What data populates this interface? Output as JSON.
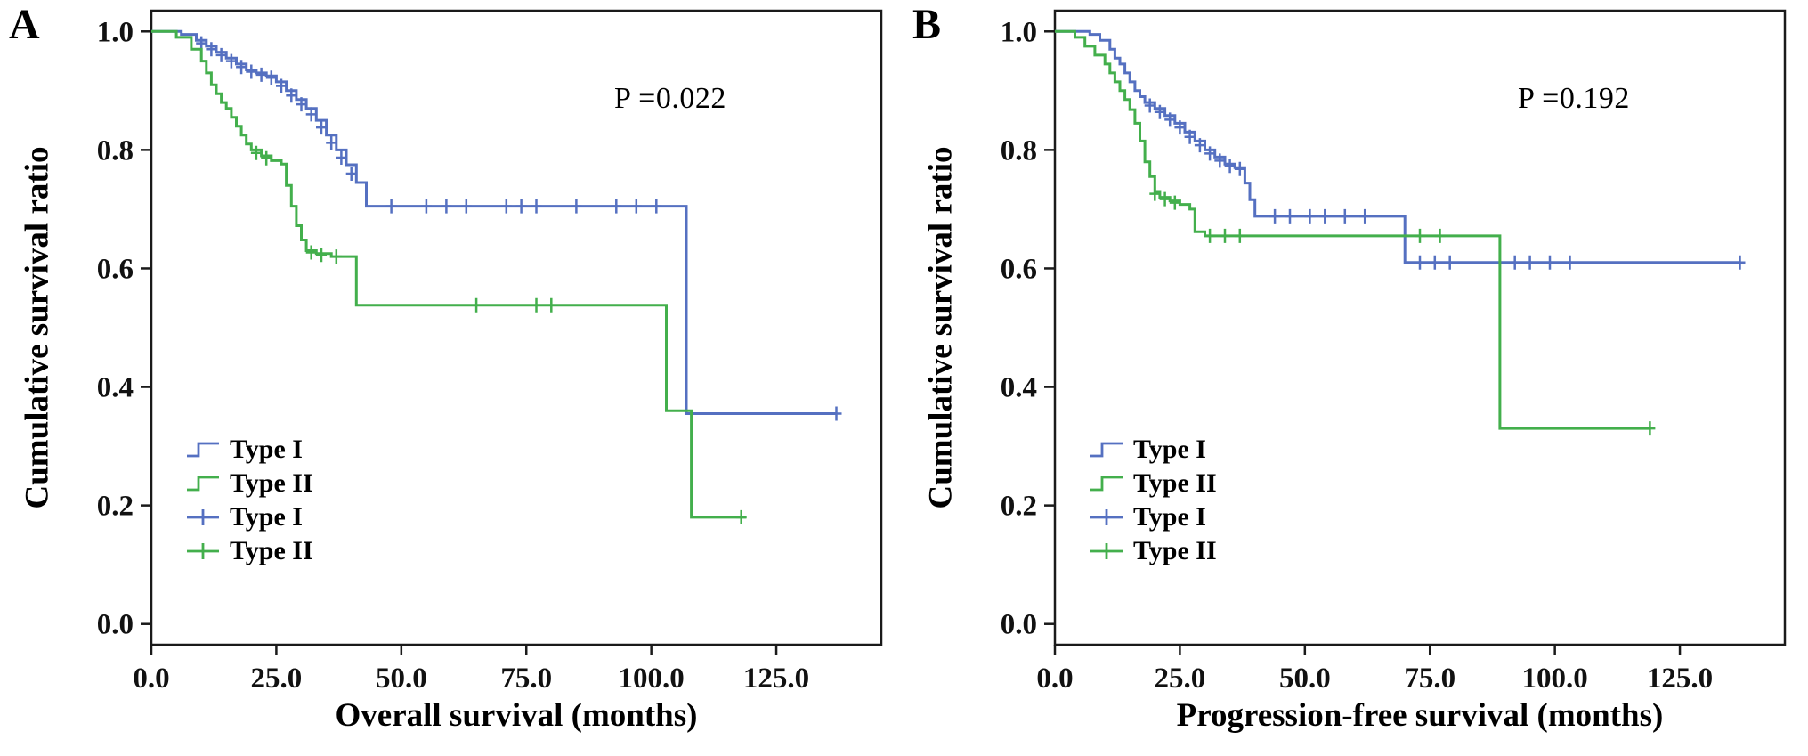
{
  "figure": {
    "background": "#ffffff",
    "colors": {
      "type1": "#5570c1",
      "type2": "#43af4c",
      "axis": "#1a1a1a",
      "text": "#111111"
    }
  },
  "chart_data": [
    {
      "type": "line",
      "subtype": "kaplan-meier-step",
      "panel_label": "A",
      "xlabel": "Overall survival (months)",
      "ylabel": "Cumulative survival ratio",
      "annotation": "P =0.022",
      "xlim": [
        0,
        146
      ],
      "ylim": [
        -0.035,
        1.035
      ],
      "xticks": [
        0,
        25,
        50,
        75,
        100,
        125
      ],
      "xtick_labels": [
        "0.0",
        "25.0",
        "50.0",
        "75.0",
        "100.0",
        "125.0"
      ],
      "yticks": [
        0,
        0.2,
        0.4,
        0.6,
        0.8,
        1.0
      ],
      "ytick_labels": [
        "0.0",
        "0.2",
        "0.4",
        "0.6",
        "0.8",
        "1.0"
      ],
      "grid": false,
      "legend_position": "lower-left-inside",
      "legend": [
        {
          "label": "Type I",
          "color_key": "type1",
          "style": "line"
        },
        {
          "label": "Type II",
          "color_key": "type2",
          "style": "line"
        },
        {
          "label": "Type I",
          "color_key": "type1",
          "style": "censor"
        },
        {
          "label": "Type II",
          "color_key": "type2",
          "style": "censor"
        }
      ],
      "series": [
        {
          "name": "Type I",
          "color_key": "type1",
          "steps": [
            [
              0,
              1.0
            ],
            [
              6,
              0.995
            ],
            [
              9,
              0.985
            ],
            [
              11,
              0.975
            ],
            [
              13,
              0.965
            ],
            [
              15,
              0.955
            ],
            [
              17,
              0.945
            ],
            [
              19,
              0.935
            ],
            [
              21,
              0.93
            ],
            [
              23,
              0.925
            ],
            [
              25,
              0.915
            ],
            [
              27,
              0.9
            ],
            [
              29,
              0.885
            ],
            [
              31,
              0.87
            ],
            [
              33,
              0.85
            ],
            [
              35,
              0.825
            ],
            [
              37,
              0.8
            ],
            [
              39,
              0.775
            ],
            [
              41,
              0.745
            ],
            [
              43,
              0.705
            ],
            [
              107,
              0.355
            ],
            [
              137,
              0.355
            ]
          ],
          "censors": [
            [
              10,
              0.98
            ],
            [
              12,
              0.97
            ],
            [
              14,
              0.96
            ],
            [
              16,
              0.95
            ],
            [
              18,
              0.94
            ],
            [
              20,
              0.932
            ],
            [
              22,
              0.927
            ],
            [
              24,
              0.922
            ],
            [
              26,
              0.908
            ],
            [
              28,
              0.892
            ],
            [
              30,
              0.877
            ],
            [
              32,
              0.86
            ],
            [
              34,
              0.838
            ],
            [
              36,
              0.812
            ],
            [
              38,
              0.787
            ],
            [
              40,
              0.76
            ],
            [
              48,
              0.705
            ],
            [
              55,
              0.705
            ],
            [
              59,
              0.705
            ],
            [
              63,
              0.705
            ],
            [
              71,
              0.705
            ],
            [
              74,
              0.705
            ],
            [
              77,
              0.705
            ],
            [
              85,
              0.705
            ],
            [
              93,
              0.705
            ],
            [
              97,
              0.705
            ],
            [
              101,
              0.705
            ],
            [
              137,
              0.355
            ]
          ]
        },
        {
          "name": "Type II",
          "color_key": "type2",
          "steps": [
            [
              0,
              1.0
            ],
            [
              5,
              0.99
            ],
            [
              8,
              0.97
            ],
            [
              10,
              0.95
            ],
            [
              11,
              0.93
            ],
            [
              12,
              0.91
            ],
            [
              13,
              0.895
            ],
            [
              14,
              0.88
            ],
            [
              15,
              0.87
            ],
            [
              16,
              0.855
            ],
            [
              17,
              0.84
            ],
            [
              18,
              0.825
            ],
            [
              19,
              0.81
            ],
            [
              20,
              0.8
            ],
            [
              22,
              0.79
            ],
            [
              24,
              0.782
            ],
            [
              26,
              0.776
            ],
            [
              27,
              0.74
            ],
            [
              28,
              0.705
            ],
            [
              29,
              0.672
            ],
            [
              30,
              0.648
            ],
            [
              31,
              0.63
            ],
            [
              33,
              0.625
            ],
            [
              36,
              0.62
            ],
            [
              41,
              0.538
            ],
            [
              103,
              0.36
            ],
            [
              108,
              0.18
            ],
            [
              119,
              0.18
            ]
          ],
          "censors": [
            [
              21,
              0.795
            ],
            [
              23,
              0.786
            ],
            [
              32,
              0.627
            ],
            [
              34,
              0.623
            ],
            [
              37,
              0.62
            ],
            [
              65,
              0.538
            ],
            [
              77,
              0.538
            ],
            [
              80,
              0.538
            ],
            [
              118,
              0.18
            ]
          ]
        }
      ]
    },
    {
      "type": "line",
      "subtype": "kaplan-meier-step",
      "panel_label": "B",
      "xlabel": "Progression-free survival (months)",
      "ylabel": "Cumulative survival ratio",
      "annotation": "P =0.192",
      "xlim": [
        0,
        146
      ],
      "ylim": [
        -0.035,
        1.035
      ],
      "xticks": [
        0,
        25,
        50,
        75,
        100,
        125
      ],
      "xtick_labels": [
        "0.0",
        "25.0",
        "50.0",
        "75.0",
        "100.0",
        "125.0"
      ],
      "yticks": [
        0,
        0.2,
        0.4,
        0.6,
        0.8,
        1.0
      ],
      "ytick_labels": [
        "0.0",
        "0.2",
        "0.4",
        "0.6",
        "0.8",
        "1.0"
      ],
      "grid": false,
      "legend_position": "lower-left-inside",
      "legend": [
        {
          "label": "Type I",
          "color_key": "type1",
          "style": "line"
        },
        {
          "label": "Type II",
          "color_key": "type2",
          "style": "line"
        },
        {
          "label": "Type I",
          "color_key": "type1",
          "style": "censor"
        },
        {
          "label": "Type II",
          "color_key": "type2",
          "style": "censor"
        }
      ],
      "series": [
        {
          "name": "Type I",
          "color_key": "type1",
          "steps": [
            [
              0,
              1.0
            ],
            [
              7,
              0.995
            ],
            [
              9,
              0.985
            ],
            [
              11,
              0.97
            ],
            [
              12,
              0.955
            ],
            [
              13,
              0.945
            ],
            [
              14,
              0.93
            ],
            [
              15,
              0.915
            ],
            [
              16,
              0.9
            ],
            [
              17,
              0.89
            ],
            [
              18,
              0.88
            ],
            [
              20,
              0.87
            ],
            [
              22,
              0.858
            ],
            [
              24,
              0.845
            ],
            [
              26,
              0.83
            ],
            [
              28,
              0.815
            ],
            [
              30,
              0.8
            ],
            [
              32,
              0.788
            ],
            [
              34,
              0.776
            ],
            [
              36,
              0.77
            ],
            [
              38,
              0.744
            ],
            [
              39,
              0.716
            ],
            [
              40,
              0.688
            ],
            [
              70,
              0.61
            ],
            [
              137,
              0.61
            ]
          ],
          "censors": [
            [
              19,
              0.875
            ],
            [
              21,
              0.864
            ],
            [
              23,
              0.851
            ],
            [
              25,
              0.838
            ],
            [
              27,
              0.822
            ],
            [
              29,
              0.808
            ],
            [
              31,
              0.794
            ],
            [
              33,
              0.782
            ],
            [
              35,
              0.773
            ],
            [
              37,
              0.768
            ],
            [
              44,
              0.688
            ],
            [
              47,
              0.688
            ],
            [
              51,
              0.688
            ],
            [
              54,
              0.688
            ],
            [
              58,
              0.688
            ],
            [
              62,
              0.688
            ],
            [
              73,
              0.61
            ],
            [
              76,
              0.61
            ],
            [
              79,
              0.61
            ],
            [
              92,
              0.61
            ],
            [
              95,
              0.61
            ],
            [
              99,
              0.61
            ],
            [
              103,
              0.61
            ],
            [
              137,
              0.61
            ]
          ]
        },
        {
          "name": "Type II",
          "color_key": "type2",
          "steps": [
            [
              0,
              1.0
            ],
            [
              4,
              0.99
            ],
            [
              6,
              0.975
            ],
            [
              8,
              0.96
            ],
            [
              10,
              0.945
            ],
            [
              11,
              0.93
            ],
            [
              12,
              0.915
            ],
            [
              13,
              0.9
            ],
            [
              14,
              0.885
            ],
            [
              15,
              0.868
            ],
            [
              16,
              0.845
            ],
            [
              17,
              0.815
            ],
            [
              18,
              0.78
            ],
            [
              19,
              0.755
            ],
            [
              20,
              0.73
            ],
            [
              21,
              0.72
            ],
            [
              23,
              0.714
            ],
            [
              25,
              0.708
            ],
            [
              27,
              0.7
            ],
            [
              28,
              0.662
            ],
            [
              30,
              0.655
            ],
            [
              89,
              0.33
            ],
            [
              119,
              0.33
            ]
          ],
          "censors": [
            [
              20,
              0.726
            ],
            [
              22,
              0.717
            ],
            [
              24,
              0.711
            ],
            [
              31,
              0.655
            ],
            [
              34,
              0.655
            ],
            [
              37,
              0.655
            ],
            [
              73,
              0.655
            ],
            [
              77,
              0.655
            ],
            [
              119,
              0.33
            ]
          ]
        }
      ]
    }
  ]
}
